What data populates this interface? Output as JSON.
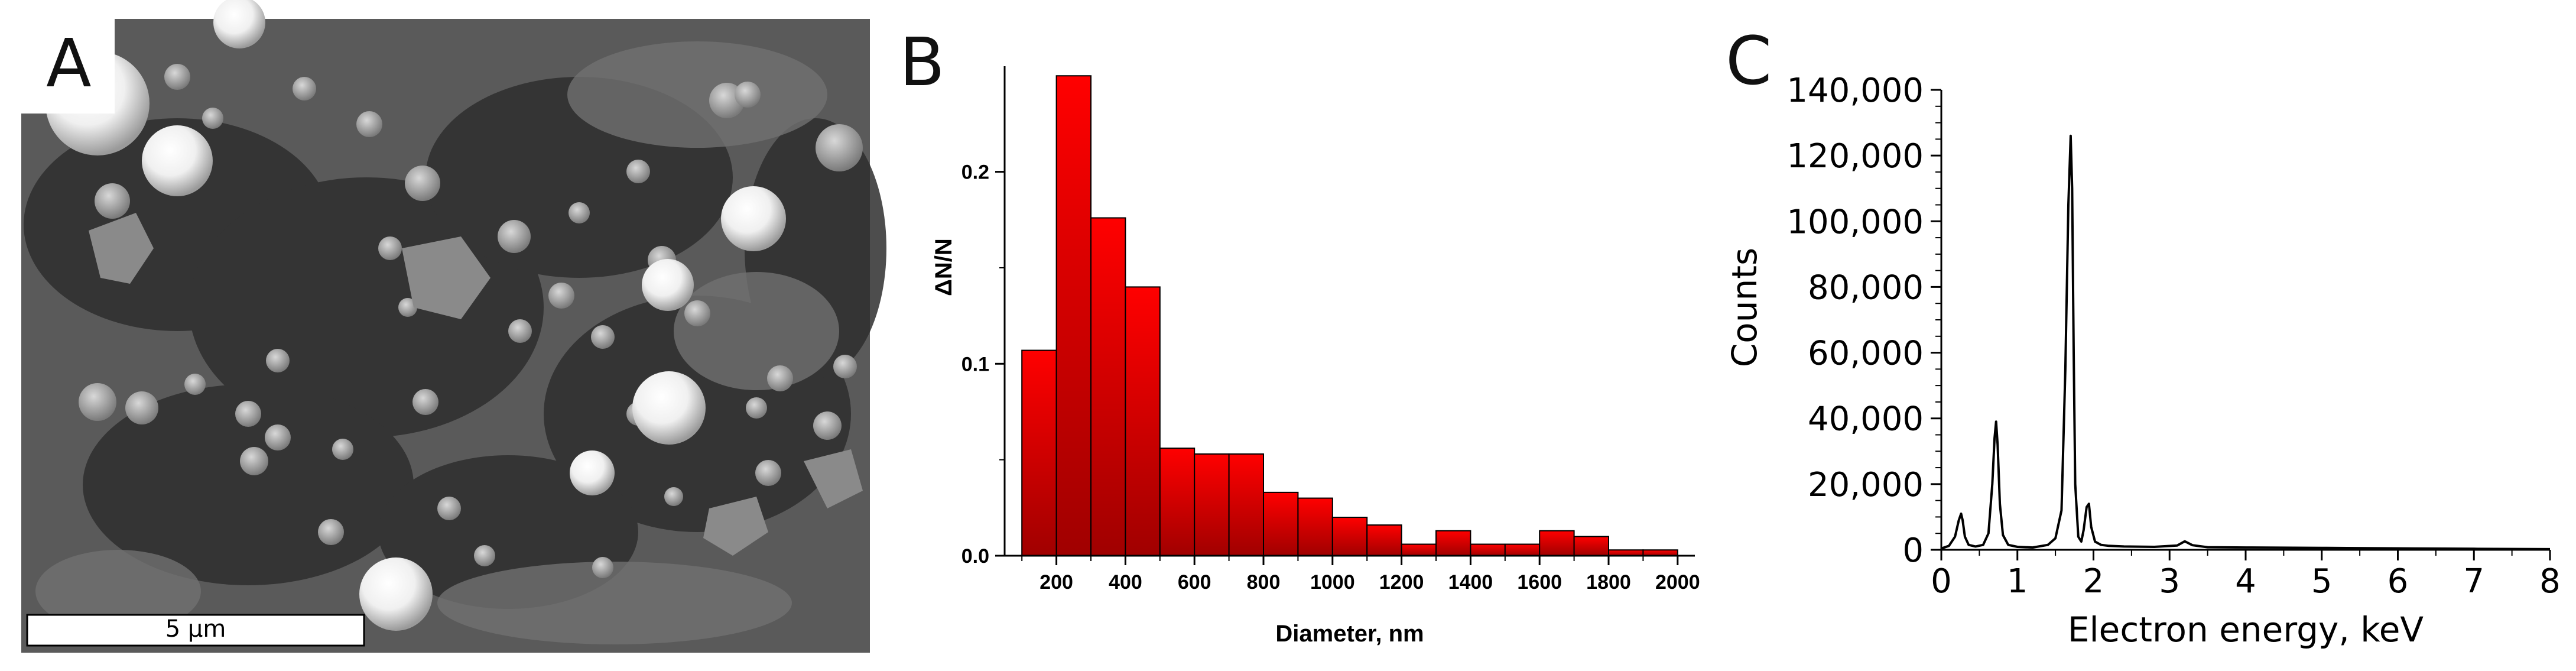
{
  "panels": {
    "a": {
      "letter": "A",
      "scale_bar_label": "5 µm"
    },
    "b": {
      "letter": "B"
    },
    "c": {
      "letter": "C"
    }
  },
  "chart_data": [
    {
      "type": "bar",
      "xlabel": "Diameter, nm",
      "ylabel": "ΔN/N",
      "x_ticks": [
        200,
        400,
        600,
        800,
        1000,
        1200,
        1400,
        1600,
        1800,
        2000
      ],
      "y_ticks": [
        "0.0",
        "0.1",
        "0.2"
      ],
      "xlim": [
        50,
        2050
      ],
      "ylim": [
        0,
        0.255
      ],
      "bin_centers": [
        150,
        250,
        350,
        450,
        550,
        650,
        750,
        850,
        950,
        1050,
        1150,
        1250,
        1350,
        1450,
        1550,
        1650,
        1750,
        1850,
        1950
      ],
      "values": [
        0.107,
        0.25,
        0.176,
        0.14,
        0.056,
        0.053,
        0.053,
        0.033,
        0.03,
        0.02,
        0.016,
        0.006,
        0.013,
        0.006,
        0.006,
        0.013,
        0.01,
        0.003,
        0.003
      ],
      "bar_color": "#e00000"
    },
    {
      "type": "line",
      "xlabel": "Electron energy, keV",
      "ylabel": "Counts",
      "x_ticks": [
        0,
        1,
        2,
        3,
        4,
        5,
        6,
        7,
        8
      ],
      "y_ticks": [
        "0",
        "20,000",
        "40,000",
        "60,000",
        "80,000",
        "100,000",
        "120,000",
        "140,000"
      ],
      "xlim": [
        0,
        8
      ],
      "ylim": [
        0,
        140000
      ],
      "x": [
        0.0,
        0.1,
        0.18,
        0.23,
        0.26,
        0.28,
        0.31,
        0.36,
        0.45,
        0.55,
        0.62,
        0.67,
        0.7,
        0.72,
        0.74,
        0.77,
        0.81,
        0.88,
        1.0,
        1.2,
        1.4,
        1.5,
        1.58,
        1.63,
        1.67,
        1.7,
        1.72,
        1.74,
        1.76,
        1.8,
        1.84,
        1.87,
        1.91,
        1.94,
        1.97,
        2.02,
        2.1,
        2.2,
        2.4,
        2.8,
        3.1,
        3.2,
        3.3,
        3.5,
        4.0,
        5.0,
        5.6,
        6.2,
        7.0,
        8.0
      ],
      "y": [
        400,
        1200,
        4000,
        9000,
        11000,
        9000,
        4000,
        1500,
        1000,
        1500,
        5000,
        20000,
        34000,
        39000,
        32000,
        14000,
        4500,
        1500,
        900,
        700,
        1500,
        3500,
        12000,
        55000,
        105000,
        126000,
        110000,
        60000,
        20000,
        4000,
        2500,
        6000,
        13000,
        14000,
        7000,
        2500,
        1500,
        1200,
        1000,
        900,
        1300,
        2600,
        1400,
        800,
        700,
        600,
        500,
        400,
        300,
        200
      ],
      "line_color": "#000000"
    }
  ]
}
